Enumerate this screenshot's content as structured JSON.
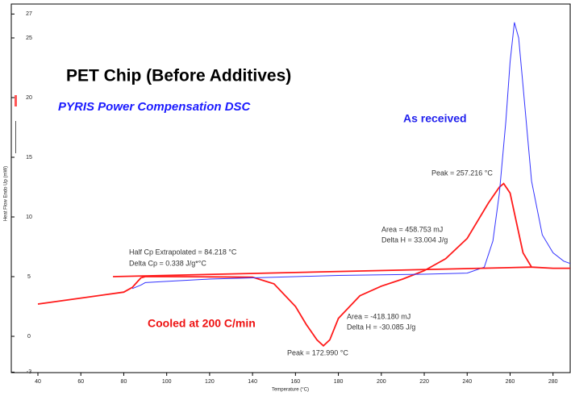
{
  "chart_data": {
    "type": "line",
    "title": "PET Chip (Before Additives)",
    "subtitle": "PYRIS Power Compensation DSC",
    "x_label": "Temperature (°C)",
    "y_label": "Heat Flow Endo Up (mW)",
    "xlim": [
      40,
      288
    ],
    "ylim": [
      -3,
      27
    ],
    "xticks": [
      40,
      60,
      80,
      100,
      120,
      140,
      160,
      180,
      200,
      220,
      240,
      260,
      280
    ],
    "yticks": [
      -3,
      0,
      5,
      10,
      15,
      20,
      25,
      27
    ],
    "series": [
      {
        "color": "#ff1a1a",
        "x": [
          40,
          60,
          80,
          84,
          86,
          88,
          90,
          100,
          120,
          140,
          150,
          160,
          165,
          170,
          173,
          176,
          180,
          190,
          200,
          210,
          220,
          230,
          240,
          250,
          255,
          257,
          260,
          263,
          266,
          270,
          280,
          288
        ],
        "values": [
          2.7,
          3.2,
          3.7,
          4.1,
          4.5,
          4.9,
          5.0,
          5.0,
          4.98,
          4.95,
          4.4,
          2.5,
          1.0,
          -0.3,
          -0.8,
          -0.3,
          1.5,
          3.4,
          4.2,
          4.8,
          5.5,
          6.5,
          8.2,
          11.2,
          12.5,
          12.8,
          12.0,
          9.5,
          7.0,
          5.8,
          5.7,
          5.7
        ]
      },
      {
        "color": "#3333ff",
        "x": [
          84,
          88,
          90,
          100,
          120,
          140,
          160,
          180,
          200,
          220,
          240,
          248,
          252,
          255,
          258,
          260,
          262,
          264,
          266,
          270,
          275,
          280,
          285,
          288
        ],
        "values": [
          4.0,
          4.3,
          4.5,
          4.6,
          4.8,
          4.9,
          5.0,
          5.1,
          5.15,
          5.2,
          5.3,
          5.8,
          8,
          12,
          18,
          23,
          26.3,
          25,
          21,
          13,
          8.5,
          7,
          6.3,
          6.1
        ]
      },
      {
        "color": "#ff1a1a",
        "x": [
          75,
          270
        ],
        "values": [
          5.0,
          5.8
        ]
      }
    ],
    "annotations": [
      {
        "text": "As received",
        "color": "#2222ee"
      },
      {
        "text": "Cooled at 200 C/min",
        "color": "#ee1111"
      },
      {
        "text": "Peak = 257.216 °C",
        "color": "#333333"
      },
      {
        "text": "Area = 458.753 mJ",
        "color": "#333333"
      },
      {
        "text": "Delta H = 33.004 J/g",
        "color": "#333333"
      },
      {
        "text": "Half Cp Extrapolated = 84.218 °C",
        "color": "#333333"
      },
      {
        "text": "Delta Cp = 0.338 J/g*°C",
        "color": "#333333"
      },
      {
        "text": "Area = -418.180 mJ",
        "color": "#333333"
      },
      {
        "text": "Delta H = -30.085 J/g",
        "color": "#333333"
      },
      {
        "text": "Peak = 172.990 °C",
        "color": "#333333"
      }
    ]
  }
}
